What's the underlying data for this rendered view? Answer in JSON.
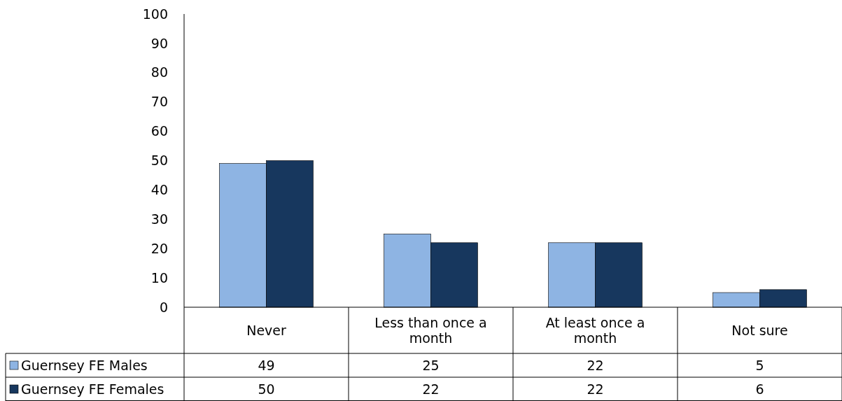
{
  "chart_data": {
    "type": "bar",
    "categories": [
      "Never",
      "Less than once a month",
      "At least once a month",
      "Not sure"
    ],
    "series": [
      {
        "name": "Guernsey FE Males",
        "color": "#8eb4e3",
        "values": [
          49,
          25,
          22,
          5
        ]
      },
      {
        "name": "Guernsey FE Females",
        "color": "#17375e",
        "values": [
          50,
          22,
          22,
          6
        ]
      }
    ],
    "ylim": [
      0,
      100
    ],
    "yticks": [
      0,
      10,
      20,
      30,
      40,
      50,
      60,
      70,
      80,
      90,
      100
    ],
    "grid": false,
    "legend": "bottom",
    "data_labels": true
  }
}
